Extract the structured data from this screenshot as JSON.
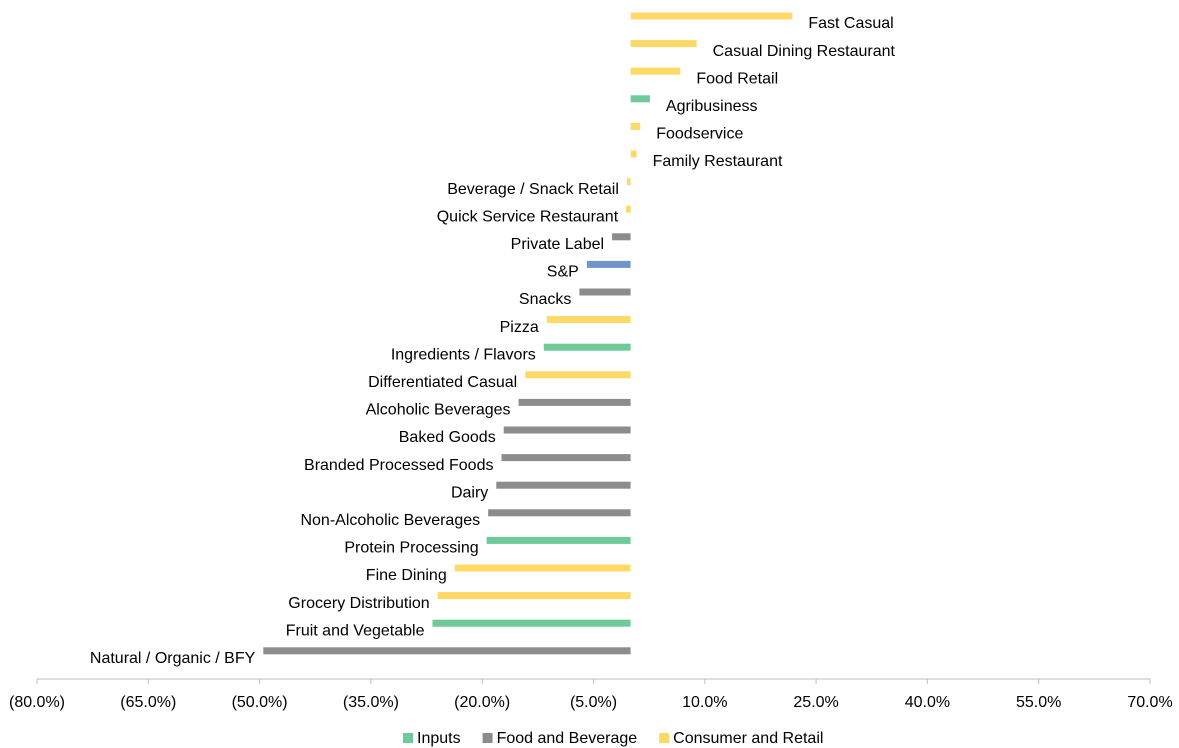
{
  "chart_data": {
    "type": "bar",
    "orientation": "horizontal",
    "categories": [
      "Fast Casual",
      "Casual Dining Restaurant",
      "Food Retail",
      "Agribusiness",
      "Foodservice",
      "Family Restaurant",
      "Beverage / Snack Retail",
      "Quick Service Restaurant",
      "Private Label",
      "S&P",
      "Snacks",
      "Pizza",
      "Ingredients / Flavors",
      "Differentiated Casual",
      "Alcoholic Beverages",
      "Baked Goods",
      "Branded Processed Foods",
      "Dairy",
      "Non-Alcoholic Beverages",
      "Protein Processing",
      "Fine Dining",
      "Grocery Distribution",
      "Fruit and Vegetable",
      "Natural / Organic / BFY"
    ],
    "values": [
      21.8,
      8.9,
      6.7,
      2.6,
      1.3,
      0.8,
      -0.5,
      -0.6,
      -2.5,
      -5.9,
      -6.9,
      -11.3,
      -11.7,
      -14.2,
      -15.1,
      -17.1,
      -17.4,
      -18.1,
      -19.2,
      -19.4,
      -23.7,
      -26.0,
      -26.7,
      -49.5
    ],
    "colors": [
      "#ffd966",
      "#ffd966",
      "#ffd966",
      "#6fca9a",
      "#ffd966",
      "#ffd966",
      "#ffd966",
      "#ffd966",
      "#8c8c8c",
      "#7295c9",
      "#8c8c8c",
      "#ffd966",
      "#6fca9a",
      "#ffd966",
      "#8c8c8c",
      "#8c8c8c",
      "#8c8c8c",
      "#8c8c8c",
      "#8c8c8c",
      "#6fca9a",
      "#ffd966",
      "#ffd966",
      "#6fca9a",
      "#8c8c8c"
    ],
    "xlim": [
      -80,
      70
    ],
    "xticks": [
      {
        "value": -80,
        "label": "(80.0%)"
      },
      {
        "value": -65,
        "label": "(65.0%)"
      },
      {
        "value": -50,
        "label": "(50.0%)"
      },
      {
        "value": -35,
        "label": "(35.0%)"
      },
      {
        "value": -20,
        "label": "(20.0%)"
      },
      {
        "value": -5,
        "label": "(5.0%)"
      },
      {
        "value": 10,
        "label": "10.0%"
      },
      {
        "value": 25,
        "label": "25.0%"
      },
      {
        "value": 40,
        "label": "40.0%"
      },
      {
        "value": 55,
        "label": "55.0%"
      },
      {
        "value": 70,
        "label": "70.0%"
      }
    ],
    "legend": [
      {
        "name": "Inputs",
        "color": "#6fca9a"
      },
      {
        "name": "Food and Beverage",
        "color": "#8c8c8c"
      },
      {
        "name": "Consumer and Retail",
        "color": "#ffd966"
      }
    ]
  }
}
